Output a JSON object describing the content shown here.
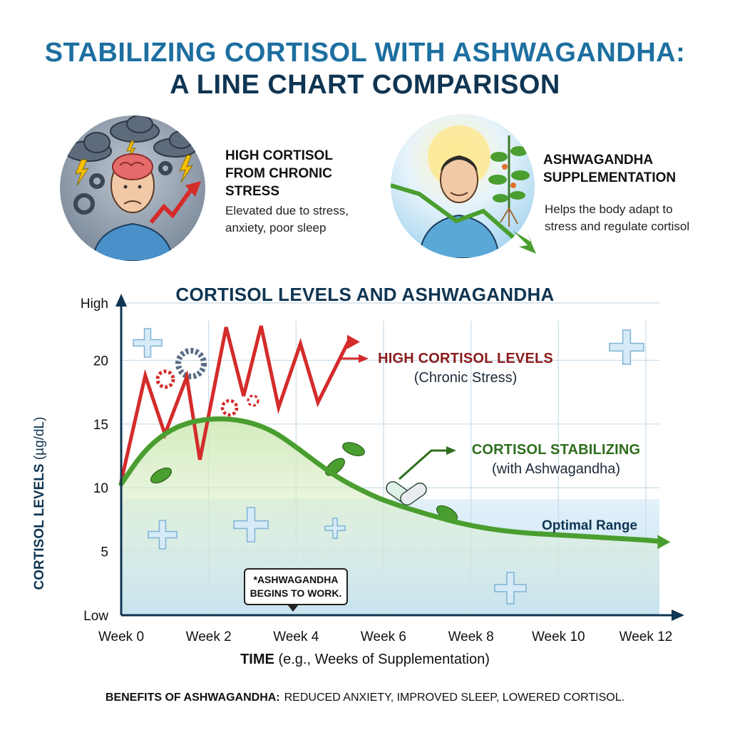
{
  "header": {
    "title_line1": "STABILIZING CORTISOL WITH ASHWAGANDHA:",
    "title_line2": "A LINE CHART COMPARISON"
  },
  "panels": {
    "stress": {
      "heading": "HIGH CORTISOL\nFROM CHRONIC\nSTRESS",
      "description": "Elevated due to stress,\nanxiety, poor sleep"
    },
    "ashwagandha": {
      "heading": "ASHWAGANDHA\nSUPPLEMENTATION",
      "description": "Helps the body adapt to\nstress and regulate cortisol"
    }
  },
  "colors": {
    "high_series": "#d42b2b",
    "stabilizing_series": "#4a9e2f",
    "axis": "#0f3552",
    "title_blue": "#1d6fa0",
    "optimal_band": "#cde6f5"
  },
  "icons": [
    "storm-cloud-icon",
    "lightning-icon",
    "gear-icon",
    "brain-icon",
    "sun-icon",
    "plant-icon",
    "capsule-icon",
    "leaf-icon",
    "plus-icon"
  ],
  "chart_data": {
    "type": "line",
    "title": "CORTISOL LEVELS AND ASHWAGANDHA",
    "ylabel_bold": "CORTISOL LEVELS",
    "ylabel_unit": "(µg/dL)",
    "xlabel_bold": "TIME",
    "xlabel_rest": "(e.g., Weeks of Supplementation)",
    "categories": [
      "Week 0",
      "Week 2",
      "Week 4",
      "Week 6",
      "Week 8",
      "Week 10",
      "Week 12"
    ],
    "y_ticks": [
      "Low",
      "5",
      "10",
      "15",
      "20",
      "High"
    ],
    "ylim": [
      0,
      24.5
    ],
    "xlim": [
      0,
      12.8
    ],
    "grid": true,
    "series": [
      {
        "name": "HIGH CORTISOL LEVELS",
        "sublabel": "(Chronic Stress)",
        "x": [
          0,
          0.55,
          1,
          1.5,
          1.8,
          2.4,
          2.8,
          3.2,
          3.6,
          4.1,
          4.5,
          5.2
        ],
        "y": [
          10.5,
          18.8,
          14.2,
          18.7,
          12.2,
          22.6,
          17.2,
          22.7,
          16.3,
          21.3,
          16.7,
          21.5
        ]
      },
      {
        "name": "CORTISOL STABILIZING",
        "sublabel": "(with Ashwagandha)",
        "x": [
          0,
          0.5,
          1,
          1.5,
          2,
          2.5,
          3,
          3.5,
          4,
          4.5,
          5,
          5.5,
          6,
          7,
          8,
          9,
          10,
          11,
          12,
          12.3
        ],
        "y": [
          10.3,
          12.8,
          14.3,
          15.1,
          15.4,
          15.4,
          15.1,
          14.4,
          13.2,
          11.9,
          10.7,
          9.8,
          9.0,
          7.9,
          7.0,
          6.5,
          6.3,
          6.1,
          5.9,
          5.8
        ]
      }
    ],
    "annotations": {
      "optimal_range": "Optimal Range",
      "onset_note": "*ASHWAGANDHA\nBEGINS TO WORK."
    }
  },
  "footer": {
    "benefits_label": "BENEFITS OF ASHWAGANDHA:",
    "benefits_text": "REDUCED ANXIETY, IMPROVED SLEEP, LOWERED CORTISOL."
  }
}
